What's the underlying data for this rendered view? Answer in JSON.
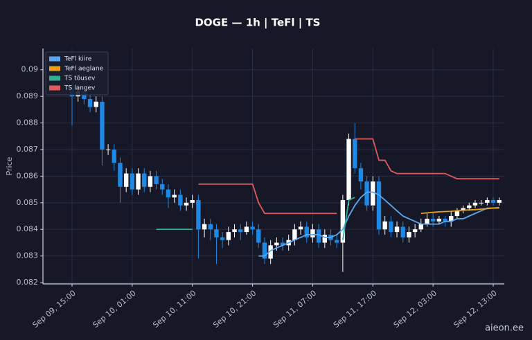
{
  "chart_data": {
    "type": "candlestick",
    "title": "DOGE — 1h  |  TeFl  |  TS",
    "y_label": "Price",
    "watermark": "aieon.ee",
    "up_color": "#ffffff",
    "down_color": "#1e88e5",
    "grid": true,
    "legend_position": "upper-left",
    "ylim": [
      0.08195,
      0.0908
    ],
    "yticks": [
      0.082,
      0.083,
      0.084,
      0.085,
      0.086,
      0.087,
      0.088,
      0.089,
      0.09
    ],
    "categories": [
      "Sep 09, 15:00",
      null,
      null,
      null,
      null,
      null,
      null,
      null,
      null,
      null,
      "Sep 10, 01:00",
      null,
      null,
      null,
      null,
      null,
      null,
      null,
      null,
      null,
      "Sep 10, 11:00",
      null,
      null,
      null,
      null,
      null,
      null,
      null,
      null,
      null,
      "Sep 10, 21:00",
      null,
      null,
      null,
      null,
      null,
      null,
      null,
      null,
      null,
      "Sep 11, 07:00",
      null,
      null,
      null,
      null,
      null,
      null,
      null,
      null,
      null,
      "Sep 11, 17:00",
      null,
      null,
      null,
      null,
      null,
      null,
      null,
      null,
      null,
      "Sep 12, 03:00",
      null,
      null,
      null,
      null,
      null,
      null,
      null,
      null,
      null,
      "Sep 12, 13:00",
      null
    ],
    "open": [
      0.0893,
      0.089,
      0.0892,
      0.0889,
      0.0886,
      0.0888,
      0.087,
      0.087,
      0.0865,
      0.0856,
      0.0861,
      0.0855,
      0.0861,
      0.0856,
      0.086,
      0.0857,
      0.0855,
      0.0852,
      0.0853,
      0.0849,
      0.085,
      0.0851,
      0.084,
      0.0842,
      0.084,
      0.0837,
      0.0836,
      0.0839,
      0.084,
      0.0839,
      0.0841,
      0.084,
      0.0835,
      0.0829,
      0.0834,
      0.0835,
      0.0834,
      0.0836,
      0.084,
      0.0841,
      0.0837,
      0.084,
      0.0835,
      0.0838,
      0.0836,
      0.0835,
      0.0851,
      0.0874,
      0.0863,
      0.0858,
      0.0849,
      0.0858,
      0.084,
      0.0843,
      0.0839,
      0.0841,
      0.0837,
      0.0839,
      0.084,
      0.0842,
      0.0844,
      0.0843,
      0.0844,
      0.0843,
      0.0845,
      0.0847,
      0.0848,
      0.0849,
      0.085,
      0.085,
      0.0851,
      0.085
    ],
    "high": [
      0.0895,
      0.0894,
      0.0894,
      0.0891,
      0.089,
      0.089,
      0.0872,
      0.0872,
      0.0867,
      0.0863,
      0.0863,
      0.0863,
      0.0863,
      0.0862,
      0.0862,
      0.0859,
      0.0857,
      0.0855,
      0.0855,
      0.0852,
      0.0853,
      0.0853,
      0.0844,
      0.0844,
      0.0842,
      0.0839,
      0.0841,
      0.0842,
      0.0842,
      0.0843,
      0.0843,
      0.0842,
      0.0837,
      0.0836,
      0.0837,
      0.0837,
      0.0838,
      0.0842,
      0.0843,
      0.0843,
      0.0842,
      0.0842,
      0.084,
      0.084,
      0.0838,
      0.0853,
      0.0876,
      0.088,
      0.0865,
      0.086,
      0.086,
      0.086,
      0.0845,
      0.0845,
      0.0843,
      0.0843,
      0.0841,
      0.0842,
      0.0844,
      0.0846,
      0.0846,
      0.0845,
      0.0845,
      0.0847,
      0.0848,
      0.0849,
      0.085,
      0.0851,
      0.0851,
      0.0852,
      0.0852,
      0.0852
    ],
    "low": [
      0.0879,
      0.0888,
      0.0887,
      0.0884,
      0.0884,
      0.0864,
      0.0868,
      0.0862,
      0.085,
      0.0854,
      0.0853,
      0.0853,
      0.0854,
      0.0854,
      0.0855,
      0.0853,
      0.0848,
      0.085,
      0.0847,
      0.0847,
      0.0848,
      0.0829,
      0.0837,
      0.0836,
      0.0827,
      0.0833,
      0.0834,
      0.0837,
      0.0836,
      0.0838,
      0.0838,
      0.0833,
      0.0827,
      0.0827,
      0.0832,
      0.0832,
      0.0832,
      0.0834,
      0.0838,
      0.0835,
      0.0835,
      0.0833,
      0.0833,
      0.0834,
      0.0833,
      0.0824,
      0.0849,
      0.0861,
      0.0855,
      0.0847,
      0.0847,
      0.0838,
      0.0838,
      0.0837,
      0.0837,
      0.0835,
      0.0835,
      0.0837,
      0.0839,
      0.0841,
      0.0841,
      0.0842,
      0.0841,
      0.0841,
      0.0844,
      0.0846,
      0.0847,
      0.0848,
      0.0849,
      0.0849,
      0.0849,
      0.0849
    ],
    "close": [
      0.089,
      0.0892,
      0.0889,
      0.0886,
      0.0888,
      0.087,
      0.087,
      0.0865,
      0.0856,
      0.0861,
      0.0855,
      0.0861,
      0.0856,
      0.086,
      0.0857,
      0.0855,
      0.0852,
      0.0853,
      0.0849,
      0.085,
      0.0851,
      0.084,
      0.0842,
      0.084,
      0.0837,
      0.0836,
      0.0839,
      0.084,
      0.0839,
      0.0841,
      0.084,
      0.0835,
      0.0829,
      0.0834,
      0.0835,
      0.0834,
      0.0836,
      0.084,
      0.0841,
      0.0837,
      0.084,
      0.0835,
      0.0838,
      0.0836,
      0.0835,
      0.0851,
      0.0874,
      0.0863,
      0.0858,
      0.0849,
      0.0858,
      0.084,
      0.0843,
      0.0839,
      0.0841,
      0.0837,
      0.0839,
      0.084,
      0.0842,
      0.0844,
      0.0843,
      0.0844,
      0.0843,
      0.0845,
      0.0847,
      0.0848,
      0.0849,
      0.085,
      0.085,
      0.0851,
      0.085,
      0.0851
    ],
    "series": [
      {
        "name": "TeFl kiire",
        "color": "#5aa9f0",
        "values": [
          null,
          null,
          null,
          null,
          null,
          null,
          null,
          null,
          null,
          null,
          null,
          null,
          null,
          null,
          null,
          null,
          null,
          null,
          null,
          null,
          null,
          null,
          null,
          null,
          null,
          null,
          null,
          null,
          null,
          null,
          null,
          0.083,
          0.083,
          0.0832,
          0.0833,
          0.0834,
          0.0835,
          0.0836,
          0.0837,
          0.0838,
          0.0838,
          0.0838,
          0.0837,
          0.0837,
          0.0838,
          0.084,
          0.0845,
          0.0849,
          0.0852,
          0.0854,
          0.0854,
          0.0853,
          0.0851,
          0.0849,
          0.0847,
          0.0845,
          0.0844,
          0.0843,
          0.0842,
          0.0842,
          0.0842,
          0.0842,
          0.0843,
          0.0843,
          0.0844,
          0.0844,
          0.0845,
          0.0846,
          0.0847,
          0.0848,
          0.0848,
          0.0848
        ]
      },
      {
        "name": "TeFl aeglane",
        "color": "#e8a317",
        "values": [
          null,
          null,
          null,
          null,
          null,
          null,
          null,
          null,
          null,
          null,
          null,
          null,
          null,
          null,
          null,
          null,
          null,
          null,
          null,
          null,
          null,
          null,
          null,
          null,
          null,
          null,
          null,
          null,
          null,
          null,
          null,
          null,
          null,
          null,
          null,
          null,
          null,
          null,
          null,
          null,
          null,
          null,
          null,
          null,
          null,
          null,
          null,
          null,
          null,
          null,
          null,
          null,
          null,
          null,
          null,
          null,
          null,
          null,
          0.0846,
          0.08462,
          0.08464,
          0.08466,
          0.08467,
          0.08468,
          0.0847,
          0.08472,
          0.08473,
          0.08474,
          0.08476,
          0.08478,
          0.0848,
          0.08482
        ]
      },
      {
        "name": "TS tõusev",
        "color": "#2fae93",
        "values": [
          null,
          null,
          null,
          null,
          null,
          null,
          null,
          null,
          null,
          null,
          null,
          null,
          null,
          null,
          0.084,
          0.084,
          0.084,
          0.084,
          0.084,
          0.084,
          0.084,
          null,
          null,
          null,
          null,
          null,
          null,
          null,
          null,
          null,
          null,
          null,
          null,
          null,
          null,
          null,
          null,
          null,
          null,
          null,
          null,
          null,
          null,
          null,
          null,
          0.0836,
          0.0851,
          0.0852,
          null,
          null,
          null,
          null,
          null,
          null,
          null,
          null,
          null,
          null,
          null,
          null,
          null,
          null,
          null,
          null,
          null,
          null,
          null,
          null,
          null,
          null,
          null,
          null
        ]
      },
      {
        "name": "TS langev",
        "color": "#e05a5a",
        "values": [
          null,
          null,
          null,
          null,
          null,
          null,
          null,
          null,
          null,
          null,
          null,
          null,
          null,
          null,
          null,
          null,
          null,
          null,
          null,
          null,
          null,
          0.0857,
          0.0857,
          0.0857,
          0.0857,
          0.0857,
          0.0857,
          0.0857,
          0.0857,
          0.0857,
          0.0857,
          0.085,
          0.0846,
          0.0846,
          0.0846,
          0.0846,
          0.0846,
          0.0846,
          0.0846,
          0.0846,
          0.0846,
          0.0846,
          0.0846,
          0.0846,
          0.0846,
          null,
          null,
          0.0874,
          0.0874,
          0.0874,
          0.0874,
          0.0866,
          0.0866,
          0.0862,
          0.0861,
          0.0861,
          0.0861,
          0.0861,
          0.0861,
          0.0861,
          0.0861,
          0.0861,
          0.0861,
          0.086,
          0.0859,
          0.0859,
          0.0859,
          0.0859,
          0.0859,
          0.0859,
          0.0859,
          0.0859
        ]
      }
    ]
  }
}
